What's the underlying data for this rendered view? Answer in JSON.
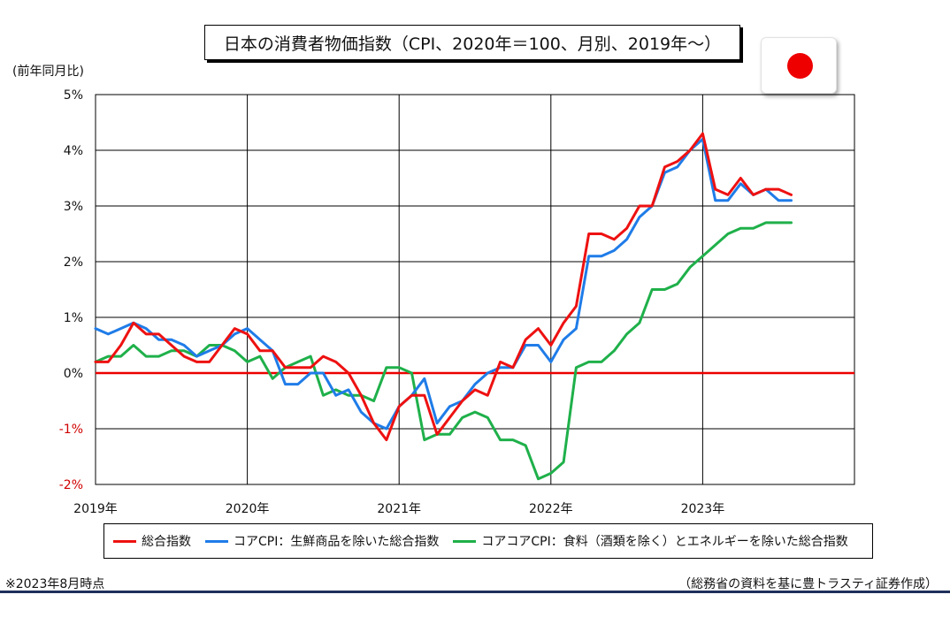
{
  "title": "日本の消費者物価指数（CPI、2020年＝100、月別、2019年～）",
  "unit_label": "(前年同月比)",
  "footnote_left": "※2023年8月時点",
  "footnote_right": "（総務省の資料を基に豊トラスティ証券作成）",
  "flag": {
    "name": "japan-flag-icon",
    "color": "#ee0000"
  },
  "colors": {
    "series_red": "#ee1111",
    "series_blue": "#1f7ce8",
    "series_green": "#1fb04a",
    "zero_line": "#ee0000",
    "grid": "#000000",
    "negative_tick": "#d00000",
    "bottom_rule": "#1f2f5a"
  },
  "legend": [
    {
      "label": "総合指数",
      "color": "#ee1111"
    },
    {
      "label": "コアCPI：生鮮商品を除いた総合指数",
      "color": "#1f7ce8"
    },
    {
      "label": "コアコアCPI：食料（酒類を除く）とエネルギーを除いた総合指数",
      "color": "#1fb04a"
    }
  ],
  "chart_data": {
    "type": "line",
    "title": "日本の消費者物価指数（CPI、2020年＝100、月別、2019年～）",
    "ylabel": "(前年同月比)",
    "xlabel": "",
    "x": [
      "2019-01",
      "2019-02",
      "2019-03",
      "2019-04",
      "2019-05",
      "2019-06",
      "2019-07",
      "2019-08",
      "2019-09",
      "2019-10",
      "2019-11",
      "2019-12",
      "2020-01",
      "2020-02",
      "2020-03",
      "2020-04",
      "2020-05",
      "2020-06",
      "2020-07",
      "2020-08",
      "2020-09",
      "2020-10",
      "2020-11",
      "2020-12",
      "2021-01",
      "2021-02",
      "2021-03",
      "2021-04",
      "2021-05",
      "2021-06",
      "2021-07",
      "2021-08",
      "2021-09",
      "2021-10",
      "2021-11",
      "2021-12",
      "2022-01",
      "2022-02",
      "2022-03",
      "2022-04",
      "2022-05",
      "2022-06",
      "2022-07",
      "2022-08",
      "2022-09",
      "2022-10",
      "2022-11",
      "2022-12",
      "2023-01",
      "2023-02",
      "2023-03",
      "2023-04",
      "2023-05",
      "2023-06",
      "2023-07",
      "2023-08"
    ],
    "x_tick_labels": [
      "2019年",
      "2020年",
      "2021年",
      "2022年",
      "2023年"
    ],
    "x_tick_months": [
      "2019-01",
      "2020-01",
      "2021-01",
      "2022-01",
      "2023-01"
    ],
    "y_ticks": [
      -2,
      -1,
      0,
      1,
      2,
      3,
      4,
      5
    ],
    "y_tick_labels": [
      "-2%",
      "-1%",
      "0%",
      "1%",
      "2%",
      "3%",
      "4%",
      "5%"
    ],
    "ylim": [
      -2,
      5
    ],
    "grid": true,
    "legend_position": "bottom",
    "series": [
      {
        "name": "総合指数",
        "color": "#ee1111",
        "values": [
          0.2,
          0.2,
          0.5,
          0.9,
          0.7,
          0.7,
          0.5,
          0.3,
          0.2,
          0.2,
          0.5,
          0.8,
          0.7,
          0.4,
          0.4,
          0.1,
          0.1,
          0.1,
          0.3,
          0.2,
          0.0,
          -0.4,
          -0.9,
          -1.2,
          -0.6,
          -0.4,
          -0.4,
          -1.1,
          -0.8,
          -0.5,
          -0.3,
          -0.4,
          0.2,
          0.1,
          0.6,
          0.8,
          0.5,
          0.9,
          1.2,
          2.5,
          2.5,
          2.4,
          2.6,
          3.0,
          3.0,
          3.7,
          3.8,
          4.0,
          4.3,
          3.3,
          3.2,
          3.5,
          3.2,
          3.3,
          3.3,
          3.2
        ]
      },
      {
        "name": "コアCPI：生鮮商品を除いた総合指数",
        "color": "#1f7ce8",
        "values": [
          0.8,
          0.7,
          0.8,
          0.9,
          0.8,
          0.6,
          0.6,
          0.5,
          0.3,
          0.4,
          0.5,
          0.7,
          0.8,
          0.6,
          0.4,
          -0.2,
          -0.2,
          0.0,
          0.0,
          -0.4,
          -0.3,
          -0.7,
          -0.9,
          -1.0,
          -0.6,
          -0.4,
          -0.1,
          -0.9,
          -0.6,
          -0.5,
          -0.2,
          0.0,
          0.1,
          0.1,
          0.5,
          0.5,
          0.2,
          0.6,
          0.8,
          2.1,
          2.1,
          2.2,
          2.4,
          2.8,
          3.0,
          3.6,
          3.7,
          4.0,
          4.2,
          3.1,
          3.1,
          3.4,
          3.2,
          3.3,
          3.1,
          3.1
        ]
      },
      {
        "name": "コアコアCPI：食料（酒類を除く）とエネルギーを除いた総合指数",
        "color": "#1fb04a",
        "values": [
          0.2,
          0.3,
          0.3,
          0.5,
          0.3,
          0.3,
          0.4,
          0.4,
          0.3,
          0.5,
          0.5,
          0.4,
          0.2,
          0.3,
          -0.1,
          0.1,
          0.2,
          0.3,
          -0.4,
          -0.3,
          -0.4,
          -0.4,
          -0.5,
          0.1,
          0.1,
          0.0,
          -1.2,
          -1.1,
          -1.1,
          -0.8,
          -0.7,
          -0.8,
          -1.2,
          -1.2,
          -1.3,
          -1.9,
          -1.8,
          -1.6,
          0.1,
          0.2,
          0.2,
          0.4,
          0.7,
          0.9,
          1.5,
          1.5,
          1.6,
          1.9,
          2.1,
          2.3,
          2.5,
          2.6,
          2.6,
          2.7,
          2.7,
          2.7
        ]
      }
    ]
  }
}
